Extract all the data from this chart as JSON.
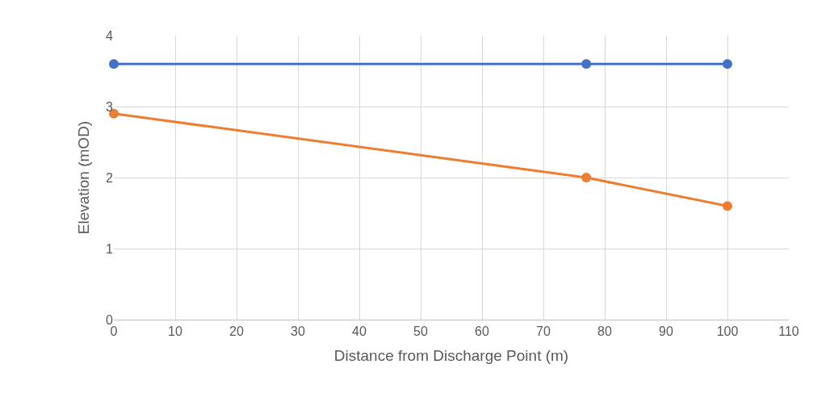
{
  "chart_data": {
    "type": "line",
    "xlabel": "Distance from Discharge Point (m)",
    "ylabel": "Elevation (mOD)",
    "x": [
      0,
      77,
      100
    ],
    "series": [
      {
        "color": "#4472c4",
        "values": [
          3.6,
          3.6,
          3.6
        ]
      },
      {
        "color": "#ed7d31",
        "values": [
          2.9,
          2.0,
          1.6
        ]
      }
    ],
    "xlim": [
      0,
      110
    ],
    "xticks": [
      0,
      10,
      20,
      30,
      40,
      50,
      60,
      70,
      80,
      90,
      100,
      110
    ],
    "ylim": [
      0,
      4
    ],
    "yticks": [
      0,
      1,
      2,
      3,
      4
    ],
    "grid": true,
    "marker": "circle",
    "line_style": "solid"
  }
}
